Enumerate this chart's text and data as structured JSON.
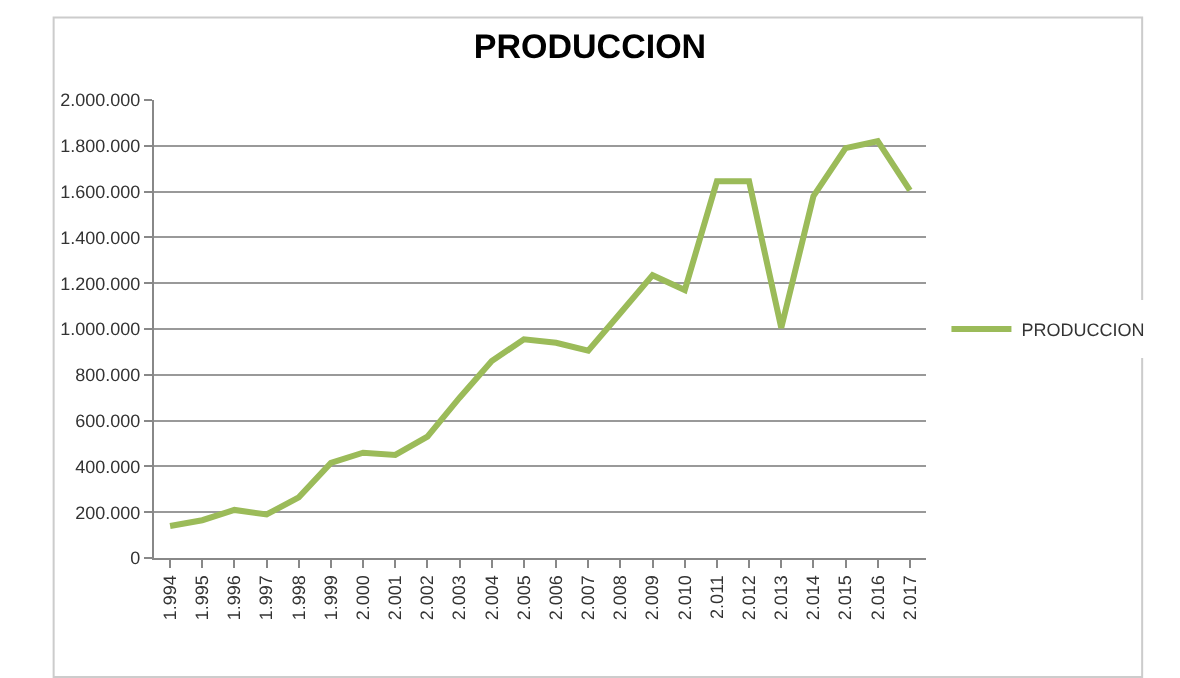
{
  "chart_data": {
    "type": "line",
    "title": "PRODUCCION",
    "categories": [
      "1.994",
      "1.995",
      "1.996",
      "1.997",
      "1.998",
      "1.999",
      "2.000",
      "2.001",
      "2.002",
      "2.003",
      "2.004",
      "2.005",
      "2.006",
      "2.007",
      "2.008",
      "2.009",
      "2.010",
      "2.011",
      "2.012",
      "2.013",
      "2.014",
      "2.015",
      "2.016",
      "2.017"
    ],
    "series": [
      {
        "name": "PRODUCCION",
        "color": "#9bbb59",
        "values": [
          140000,
          165000,
          210000,
          190000,
          265000,
          415000,
          460000,
          450000,
          530000,
          700000,
          860000,
          955000,
          940000,
          905000,
          1070000,
          1235000,
          1170000,
          1645000,
          1645000,
          1005000,
          1580000,
          1790000,
          1820000,
          1605000
        ]
      }
    ],
    "ylim": [
      0,
      2000000
    ],
    "yticks": [
      {
        "value": 0,
        "label": "0"
      },
      {
        "value": 200000,
        "label": "200.000"
      },
      {
        "value": 400000,
        "label": "400.000"
      },
      {
        "value": 600000,
        "label": "600.000"
      },
      {
        "value": 800000,
        "label": "800.000"
      },
      {
        "value": 1000000,
        "label": "1.000.000"
      },
      {
        "value": 1200000,
        "label": "1.200.000"
      },
      {
        "value": 1400000,
        "label": "1.400.000"
      },
      {
        "value": 1600000,
        "label": "1.600.000"
      },
      {
        "value": 1800000,
        "label": "1.800.000"
      },
      {
        "value": 2000000,
        "label": "2.000.000"
      }
    ],
    "grid": "y",
    "legend": "right",
    "marker": "none",
    "line_style": "solid"
  }
}
